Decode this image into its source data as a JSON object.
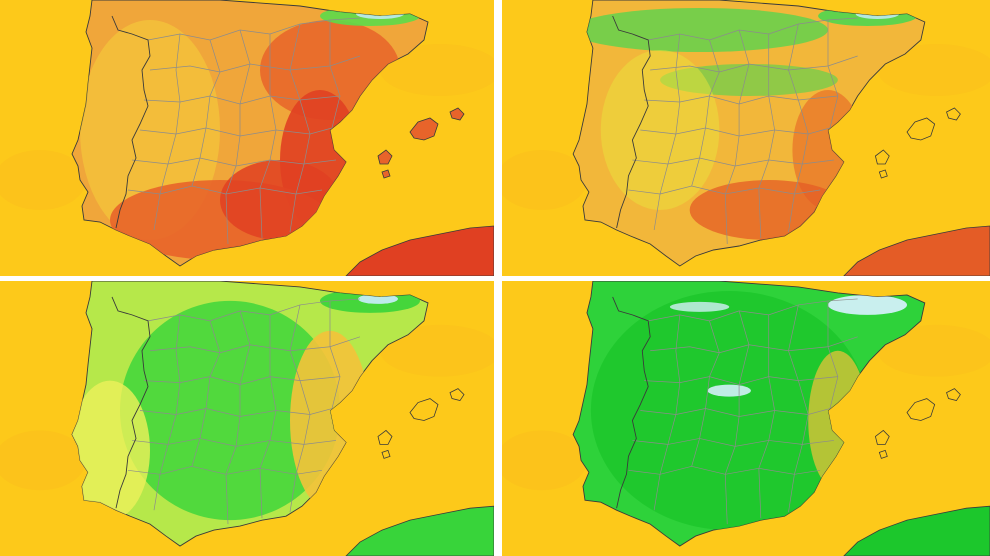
{
  "colors": {
    "sea": "#fdc91a",
    "sea_alt": "#fbbf1c",
    "divider": "#ffffff",
    "border_line": "#8c8c8c",
    "coast_line": "#3a3a3a"
  },
  "panels": [
    {
      "scheme": "warm",
      "land": "#f0a63a",
      "hot": "#e8642a",
      "hotter": "#e04022",
      "cool": "#f6cf3a",
      "green": "#5cdc4a",
      "snow": "#bfeaf0"
    },
    {
      "scheme": "mixed",
      "land": "#f2b73a",
      "hot": "#ea7c2c",
      "hotter": "#e45c26",
      "cool": "#e9e43c",
      "green": "#4fd650",
      "snow": "#bfeaf0"
    },
    {
      "scheme": "cooler",
      "land": "#b6e84a",
      "hot": "#f4c23a",
      "hotter": "#eaa434",
      "cool": "#eef05a",
      "green": "#38d43a",
      "snow": "#c4ecf4"
    },
    {
      "scheme": "coolest",
      "land": "#2ed23a",
      "hot": "#f4c23a",
      "hotter": "#eaa434",
      "cool": "#e9ef4a",
      "green": "#1cc72c",
      "snow": "#d2f0f8"
    }
  ]
}
